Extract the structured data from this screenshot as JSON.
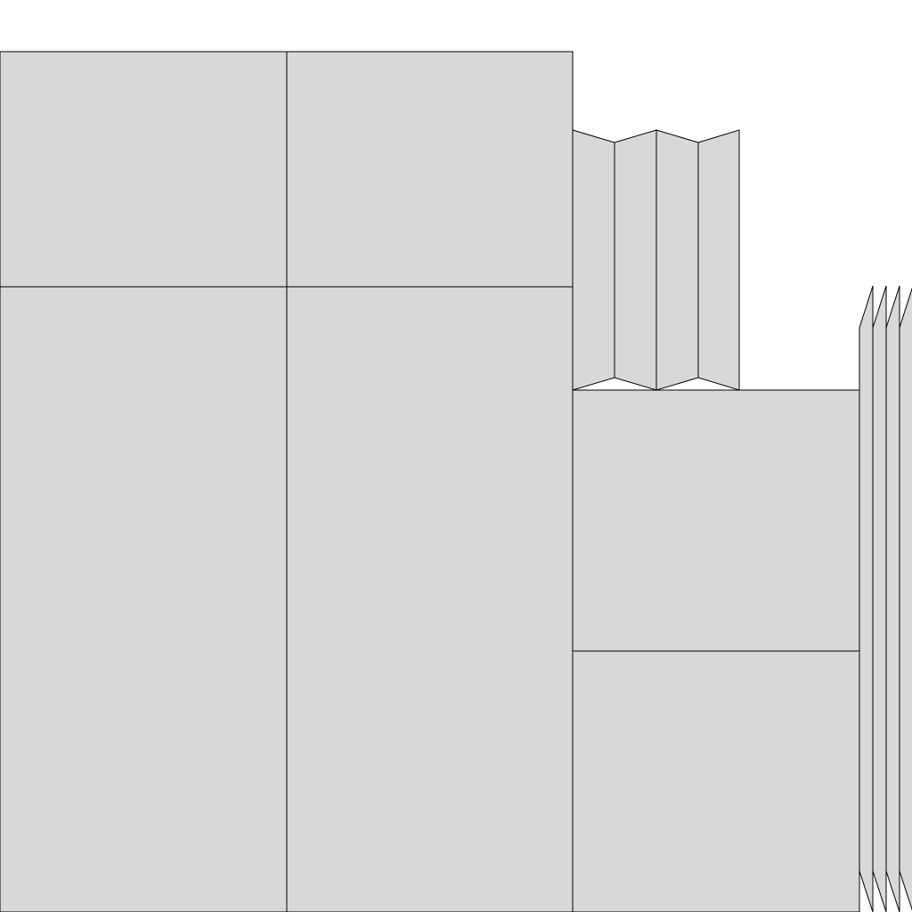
{
  "diagram": {
    "colors": {
      "panel_fill": "#d8d8d8",
      "stroke": "#000000",
      "background": "#ffffff"
    }
  }
}
